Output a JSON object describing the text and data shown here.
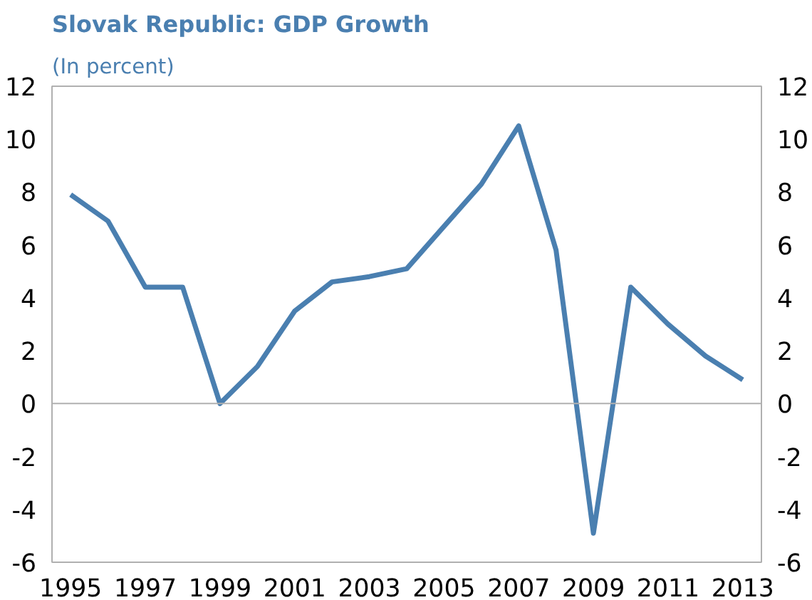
{
  "chart_data": {
    "type": "line",
    "title": "Slovak Republic: GDP Growth",
    "subtitle": "(In percent)",
    "x": [
      1995,
      1996,
      1997,
      1998,
      1999,
      2000,
      2001,
      2002,
      2003,
      2004,
      2005,
      2006,
      2007,
      2008,
      2009,
      2010,
      2011,
      2012,
      2013
    ],
    "series": [
      {
        "color": "#4a7fb0",
        "values": [
          7.9,
          6.9,
          4.4,
          4.4,
          0.0,
          1.4,
          3.5,
          4.6,
          4.8,
          5.1,
          6.7,
          8.3,
          10.5,
          5.8,
          -4.9,
          4.4,
          3.0,
          1.8,
          0.9
        ]
      }
    ],
    "xlim": [
      1994.5,
      2013.5
    ],
    "xticks": [
      1995,
      1997,
      1999,
      2001,
      2003,
      2005,
      2007,
      2009,
      2011,
      2013
    ],
    "ylim": [
      -6,
      12
    ],
    "yticks": [
      -6,
      -4,
      -2,
      0,
      2,
      4,
      6,
      8,
      10,
      12
    ],
    "y2lim": [
      -6,
      12
    ],
    "y2ticks": [
      -6,
      -4,
      -2,
      0,
      2,
      4,
      6,
      8,
      10,
      12
    ],
    "ref_lines": [
      {
        "axis": "y",
        "value": 0,
        "color": "#b0b0b0"
      }
    ],
    "grid": false,
    "marker": "none",
    "line_style": "solid"
  }
}
